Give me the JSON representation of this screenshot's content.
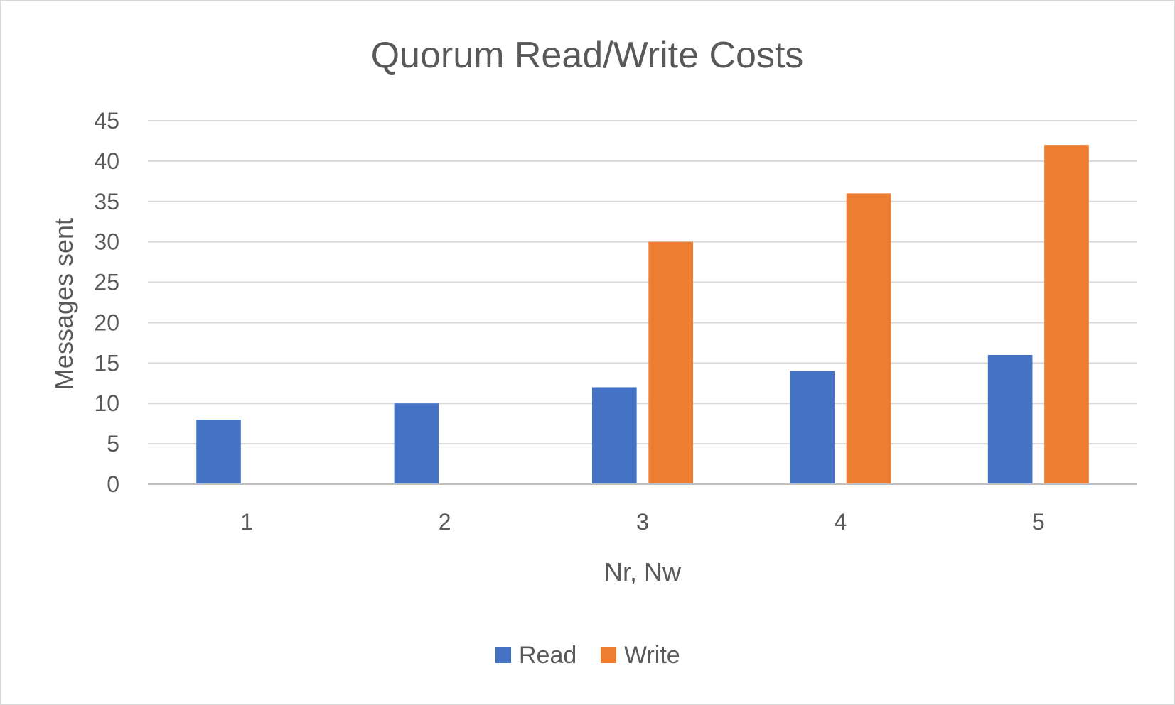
{
  "chart_data": {
    "type": "bar",
    "title": "Quorum Read/Write Costs",
    "xlabel": "Nr, Nw",
    "ylabel": "Messages sent",
    "categories": [
      "1",
      "2",
      "3",
      "4",
      "5"
    ],
    "series": [
      {
        "name": "Read",
        "color": "#4472C4",
        "values": [
          8,
          10,
          12,
          14,
          16
        ]
      },
      {
        "name": "Write",
        "color": "#ED7D31",
        "values": [
          null,
          null,
          30,
          36,
          42
        ]
      }
    ],
    "ylim": [
      0,
      45
    ],
    "yticks": [
      "0",
      "5",
      "10",
      "15",
      "20",
      "25",
      "30",
      "35",
      "40",
      "45"
    ],
    "grid": true,
    "legend": "bottom"
  }
}
